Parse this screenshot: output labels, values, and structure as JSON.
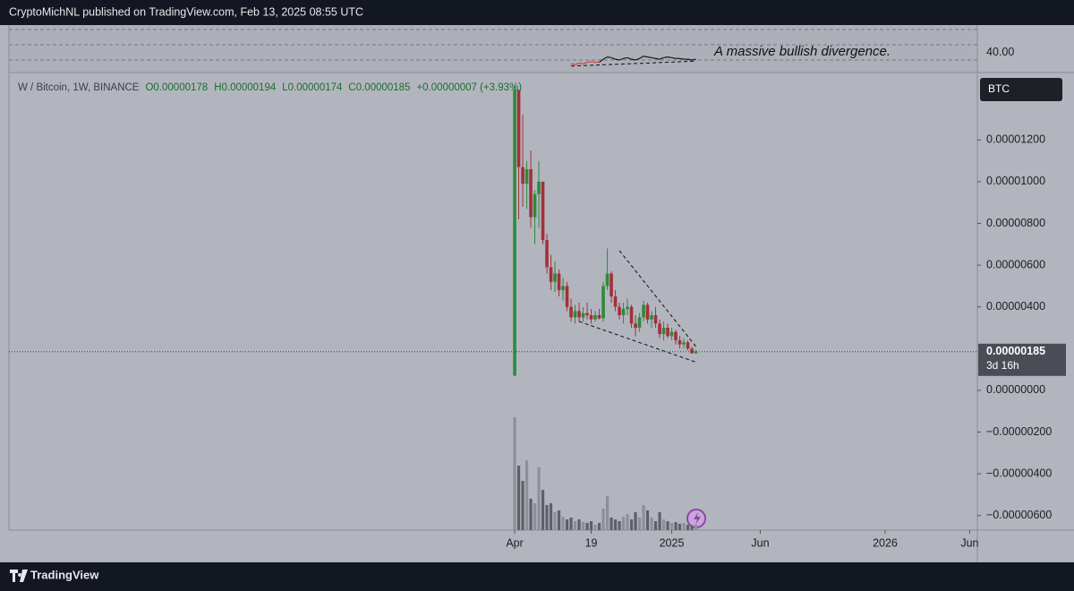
{
  "header": {
    "title": "CryptoMichNL published on TradingView.com, Feb 13, 2025 08:55 UTC"
  },
  "footer": {
    "brand": "TradingView"
  },
  "chart_data": {
    "type": "candlestick",
    "symbol": "W / Bitcoin, 1W, BINANCE",
    "legend": {
      "open": "O0.00000178",
      "high": "H0.00000194",
      "low": "L0.00000174",
      "close": "C0.00000185",
      "change": "+0.00000007 (+3.93%)"
    },
    "currency": "BTC",
    "last_price": {
      "value": 1.85e-06,
      "label": "0.00000185",
      "countdown": "3d 16h"
    },
    "up_color": "#2f8a3a",
    "down_color": "#a3303a",
    "background": "#b2b5be",
    "x": [
      0,
      1,
      2,
      3,
      4,
      5,
      6,
      7,
      8,
      9,
      10,
      11,
      12,
      13,
      14,
      15,
      16,
      17,
      18,
      19,
      20,
      21,
      22,
      23,
      24,
      25,
      26,
      27,
      28,
      29,
      30,
      31,
      32,
      33,
      34,
      35,
      36,
      37,
      38,
      39,
      40,
      41,
      42,
      43,
      44,
      45
    ],
    "open": [
      7e-07,
      1.44e-05,
      1.07e-05,
      9.9e-06,
      1.06e-05,
      8.3e-06,
      9.4e-06,
      1e-05,
      7.2e-06,
      5.9e-06,
      5.2e-06,
      5.6e-06,
      4.8e-06,
      5e-06,
      4e-06,
      3.5e-06,
      3.8e-06,
      3.5e-06,
      3.7e-06,
      3.6e-06,
      3.4e-06,
      3.6e-06,
      3.45e-06,
      5e-06,
      5.6e-06,
      4.5e-06,
      4e-06,
      3.6e-06,
      3.9e-06,
      4e-06,
      3.2e-06,
      3e-06,
      3.5e-06,
      4.1e-06,
      3.4e-06,
      3.6e-06,
      3.2e-06,
      2.7e-06,
      3e-06,
      2.6e-06,
      2.8e-06,
      2.4e-06,
      2.2e-06,
      2.3e-06,
      2e-06,
      1.78e-06
    ],
    "high": [
      1.455e-05,
      1.44e-05,
      1.32e-05,
      1.1e-05,
      1.15e-05,
      9.6e-06,
      1.1e-05,
      1e-05,
      7.5e-06,
      6.5e-06,
      6.2e-06,
      5.8e-06,
      5.4e-06,
      5.2e-06,
      4.4e-06,
      4.1e-06,
      4.2e-06,
      4e-06,
      4.2e-06,
      3.9e-06,
      3.8e-06,
      3.9e-06,
      5.2e-06,
      6.8e-06,
      5.7e-06,
      4.8e-06,
      4.2e-06,
      4.2e-06,
      4.4e-06,
      4.1e-06,
      3.6e-06,
      3.7e-06,
      4.3e-06,
      4.2e-06,
      3.8e-06,
      4e-06,
      3.4e-06,
      3.3e-06,
      3.2e-06,
      3e-06,
      2.9e-06,
      2.6e-06,
      2.5e-06,
      2.4e-06,
      2.1e-06,
      1.94e-06
    ],
    "low": [
      7e-07,
      8.2e-06,
      8.8e-06,
      8.7e-06,
      7.8e-06,
      7e-06,
      7.8e-06,
      7e-06,
      5.6e-06,
      4.8e-06,
      4.7e-06,
      4.5e-06,
      4.3e-06,
      3.8e-06,
      3.3e-06,
      3.2e-06,
      3.3e-06,
      3.3e-06,
      3.4e-06,
      3.2e-06,
      3.3e-06,
      3.4e-06,
      3.3e-06,
      4.8e-06,
      4.2e-06,
      3.8e-06,
      3.4e-06,
      3.2e-06,
      3.6e-06,
      3e-06,
      2.6e-06,
      2.8e-06,
      3.3e-06,
      3.2e-06,
      3e-06,
      3e-06,
      2.5e-06,
      2.4e-06,
      2.5e-06,
      2.4e-06,
      2.2e-06,
      2e-06,
      2e-06,
      1.9e-06,
      1.75e-06,
      1.74e-06
    ],
    "close": [
      1.44e-05,
      1.07e-05,
      9.9e-06,
      1.06e-05,
      8.3e-06,
      9.4e-06,
      1e-05,
      7.2e-06,
      5.9e-06,
      5.2e-06,
      5.6e-06,
      4.8e-06,
      5e-06,
      4e-06,
      3.5e-06,
      3.8e-06,
      3.5e-06,
      3.7e-06,
      3.6e-06,
      3.4e-06,
      3.6e-06,
      3.45e-06,
      5e-06,
      5.6e-06,
      4.5e-06,
      4e-06,
      3.6e-06,
      3.9e-06,
      4e-06,
      3.2e-06,
      3e-06,
      3.5e-06,
      4.1e-06,
      3.4e-06,
      3.6e-06,
      3.2e-06,
      2.7e-06,
      3e-06,
      2.6e-06,
      2.8e-06,
      2.4e-06,
      2.2e-06,
      2.3e-06,
      2e-06,
      1.78e-06,
      1.85e-06
    ],
    "volume": [
      126,
      72,
      55,
      78,
      35,
      30,
      70,
      45,
      28,
      30,
      20,
      22,
      15,
      12,
      14,
      10,
      12,
      9,
      8,
      10,
      6,
      8,
      24,
      38,
      14,
      12,
      10,
      15,
      18,
      12,
      20,
      14,
      28,
      22,
      14,
      10,
      20,
      12,
      10,
      8,
      9,
      7,
      8,
      6,
      5,
      6
    ],
    "volume_lim": [
      0,
      130
    ],
    "volume_up_color": "#8e9098",
    "volume_down_color": "#5d6068",
    "xlim": [
      -125.6,
      114.9
    ],
    "xticks": [
      {
        "value": 0,
        "label": "Apr"
      },
      {
        "value": 19,
        "label": "19"
      },
      {
        "value": 39,
        "label": "2025"
      },
      {
        "value": 61,
        "label": "Jun"
      },
      {
        "value": 92,
        "label": "2026"
      },
      {
        "value": 113,
        "label": "Jun"
      }
    ],
    "ylim": [
      -6.7e-06,
      1.519e-05
    ],
    "yticks": [
      {
        "value": 1.2e-05,
        "label": "0.00001200"
      },
      {
        "value": 1e-05,
        "label": "0.00001000"
      },
      {
        "value": 8e-06,
        "label": "0.00000800"
      },
      {
        "value": 6e-06,
        "label": "0.00000600"
      },
      {
        "value": 4e-06,
        "label": "0.00000400"
      },
      {
        "value": 0,
        "label": "0.00000000"
      },
      {
        "value": -2e-06,
        "label": "−0.00000200"
      },
      {
        "value": -4e-06,
        "label": "−0.00000400"
      },
      {
        "value": -6e-06,
        "label": "−0.00000600"
      }
    ],
    "drawings": [
      {
        "x": [
          26,
          45
        ],
        "y": [
          6.7e-06,
          2.1e-06
        ]
      },
      {
        "x": [
          16,
          45
        ],
        "y": [
          3.3e-06,
          1.35e-06
        ]
      }
    ],
    "rsi": {
      "values": [
        null,
        null,
        null,
        null,
        null,
        null,
        null,
        null,
        null,
        null,
        null,
        null,
        null,
        null,
        25,
        24,
        26,
        25,
        27,
        28,
        27,
        27,
        31,
        34,
        33,
        31,
        30,
        32,
        33,
        31,
        30,
        32,
        35,
        34,
        33,
        32,
        31,
        33,
        34,
        33,
        32,
        32,
        31,
        31,
        30,
        31
      ],
      "color": "#1a1a1a",
      "oversold_color": "#d94040",
      "ylim": [
        14.7,
        75.9
      ],
      "yticks": [
        {
          "value": 40,
          "label": "40.00"
        }
      ],
      "bands": [
        70,
        50,
        30
      ],
      "divergence": {
        "x": [
          14,
          45
        ],
        "y": [
          22,
          28.5
        ]
      },
      "annotation": "A massive bullish divergence."
    }
  }
}
